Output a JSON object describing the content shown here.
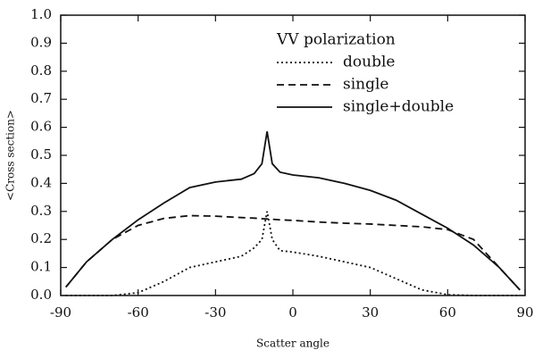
{
  "chart_data": {
    "type": "line",
    "xlabel": "Scatter angle",
    "ylabel": "<Cross section>",
    "legend_title": "VV polarization",
    "legend": "upper right",
    "x": [
      -88,
      -80,
      -70,
      -60,
      -50,
      -40,
      -30,
      -20,
      -15,
      -12,
      -10,
      -8,
      -5,
      0,
      10,
      20,
      30,
      40,
      50,
      60,
      70,
      80,
      88
    ],
    "series": [
      {
        "name": "double",
        "color": "#111111",
        "dash": "dotted",
        "values": [
          0,
          0,
          0,
          0.01,
          0.05,
          0.1,
          0.12,
          0.14,
          0.17,
          0.2,
          0.3,
          0.2,
          0.16,
          0.155,
          0.14,
          0.12,
          0.1,
          0.06,
          0.02,
          0.003,
          0,
          0,
          0
        ]
      },
      {
        "name": "single",
        "color": "#111111",
        "dash": "dashed",
        "values": [
          0.03,
          0.12,
          0.2,
          0.25,
          0.275,
          0.285,
          0.283,
          0.278,
          0.276,
          0.274,
          0.273,
          0.272,
          0.27,
          0.268,
          0.262,
          0.258,
          0.255,
          0.25,
          0.245,
          0.235,
          0.2,
          0.1,
          0.02
        ]
      },
      {
        "name": "single+double",
        "color": "#111111",
        "dash": "solid",
        "values": [
          0.03,
          0.12,
          0.2,
          0.27,
          0.33,
          0.385,
          0.405,
          0.415,
          0.435,
          0.47,
          0.585,
          0.47,
          0.44,
          0.43,
          0.42,
          0.4,
          0.375,
          0.34,
          0.29,
          0.24,
          0.18,
          0.1,
          0.02
        ]
      }
    ],
    "xlim": [
      -90,
      90
    ],
    "xticks": [
      -90,
      -60,
      -30,
      0,
      30,
      60,
      90
    ],
    "ylim": [
      0,
      1
    ],
    "yticks": [
      {
        "value": 0,
        "label": "0.0"
      },
      0.1,
      0.2,
      0.3,
      0.4,
      0.5,
      0.6,
      0.7,
      0.8,
      0.9,
      {
        "value": 1,
        "label": "1.0"
      }
    ]
  }
}
